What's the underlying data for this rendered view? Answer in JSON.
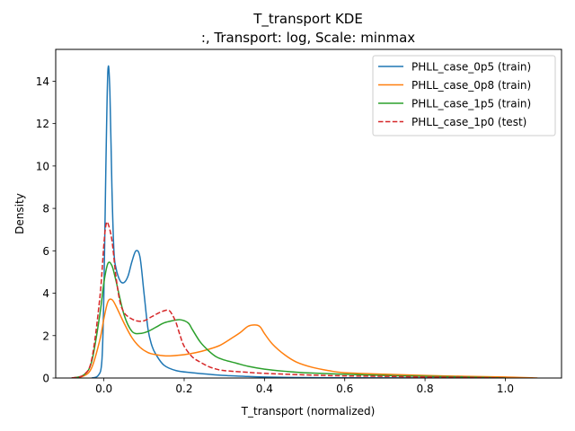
{
  "chart_data": {
    "type": "line",
    "title": "T_transport KDE",
    "subtitle": ":, Transport: log, Scale: minmax",
    "xlabel": "T_transport (normalized)",
    "ylabel": "Density",
    "xlim": [
      -0.12,
      1.14
    ],
    "ylim": [
      0,
      15.5
    ],
    "xticks": [
      0.0,
      0.2,
      0.4,
      0.6,
      0.8,
      1.0
    ],
    "xtick_labels": [
      "0.0",
      "0.2",
      "0.4",
      "0.6",
      "0.8",
      "1.0"
    ],
    "yticks": [
      0,
      2,
      4,
      6,
      8,
      10,
      12,
      14
    ],
    "ytick_labels": [
      "0",
      "2",
      "4",
      "6",
      "8",
      "10",
      "12",
      "14"
    ],
    "grid": false,
    "legend_position": "top-right",
    "series": [
      {
        "name": "PHLL_case_0p5 (train)",
        "color": "#1f77b4",
        "dash": "solid",
        "x": [
          -0.03,
          -0.015,
          -0.005,
          0.0,
          0.005,
          0.01,
          0.015,
          0.02,
          0.025,
          0.03,
          0.04,
          0.05,
          0.06,
          0.07,
          0.08,
          0.09,
          0.1,
          0.11,
          0.12,
          0.13,
          0.15,
          0.18,
          0.22,
          0.26,
          0.3,
          0.35,
          0.4,
          0.5,
          0.6,
          0.8,
          1.0
        ],
        "y": [
          0.0,
          0.1,
          0.8,
          4.0,
          10.0,
          14.5,
          13.5,
          9.0,
          6.0,
          5.2,
          4.6,
          4.5,
          4.8,
          5.5,
          6.0,
          5.7,
          4.0,
          2.3,
          1.5,
          1.1,
          0.6,
          0.35,
          0.25,
          0.18,
          0.12,
          0.08,
          0.05,
          0.02,
          0.01,
          0.005,
          0.0
        ]
      },
      {
        "name": "PHLL_case_0p8 (train)",
        "color": "#ff7f0e",
        "dash": "solid",
        "x": [
          -0.08,
          -0.05,
          -0.03,
          -0.01,
          0.0,
          0.01,
          0.02,
          0.03,
          0.05,
          0.07,
          0.09,
          0.11,
          0.13,
          0.15,
          0.17,
          0.2,
          0.23,
          0.26,
          0.29,
          0.32,
          0.34,
          0.36,
          0.38,
          0.39,
          0.4,
          0.42,
          0.45,
          0.48,
          0.52,
          0.56,
          0.6,
          0.7,
          0.8,
          0.9,
          1.0,
          1.08
        ],
        "y": [
          0.0,
          0.1,
          0.5,
          1.8,
          2.8,
          3.6,
          3.7,
          3.4,
          2.6,
          1.9,
          1.45,
          1.2,
          1.1,
          1.05,
          1.05,
          1.1,
          1.2,
          1.35,
          1.55,
          1.9,
          2.15,
          2.45,
          2.5,
          2.4,
          2.1,
          1.6,
          1.1,
          0.75,
          0.5,
          0.35,
          0.25,
          0.18,
          0.12,
          0.08,
          0.05,
          0.0
        ]
      },
      {
        "name": "PHLL_case_1p5 (train)",
        "color": "#2ca02c",
        "dash": "solid",
        "x": [
          -0.08,
          -0.05,
          -0.03,
          -0.01,
          0.0,
          0.01,
          0.02,
          0.03,
          0.05,
          0.07,
          0.09,
          0.11,
          0.13,
          0.15,
          0.17,
          0.19,
          0.21,
          0.22,
          0.24,
          0.26,
          0.28,
          0.3,
          0.33,
          0.36,
          0.4,
          0.45,
          0.5,
          0.6,
          0.7,
          0.8,
          0.9,
          1.0
        ],
        "y": [
          0.0,
          0.15,
          0.8,
          3.0,
          4.5,
          5.4,
          5.3,
          4.6,
          3.0,
          2.2,
          2.1,
          2.2,
          2.4,
          2.6,
          2.7,
          2.75,
          2.6,
          2.3,
          1.7,
          1.3,
          1.0,
          0.85,
          0.7,
          0.55,
          0.42,
          0.32,
          0.25,
          0.18,
          0.12,
          0.08,
          0.05,
          0.0
        ]
      },
      {
        "name": "PHLL_case_1p0 (test)",
        "color": "#d62728",
        "dash": "dashed",
        "x": [
          -0.08,
          -0.05,
          -0.03,
          -0.01,
          0.0,
          0.005,
          0.01,
          0.02,
          0.03,
          0.04,
          0.05,
          0.06,
          0.08,
          0.1,
          0.12,
          0.14,
          0.16,
          0.17,
          0.18,
          0.19,
          0.2,
          0.22,
          0.24,
          0.26,
          0.28,
          0.3,
          0.35,
          0.4,
          0.5,
          0.6,
          0.7,
          0.8,
          0.9,
          1.0
        ],
        "y": [
          0.0,
          0.15,
          0.9,
          3.8,
          6.3,
          7.2,
          7.3,
          6.5,
          4.8,
          3.6,
          3.1,
          2.9,
          2.7,
          2.7,
          2.9,
          3.1,
          3.2,
          3.0,
          2.6,
          2.0,
          1.5,
          1.0,
          0.75,
          0.55,
          0.42,
          0.35,
          0.28,
          0.22,
          0.15,
          0.1,
          0.08,
          0.05,
          0.03,
          0.0
        ]
      }
    ]
  }
}
